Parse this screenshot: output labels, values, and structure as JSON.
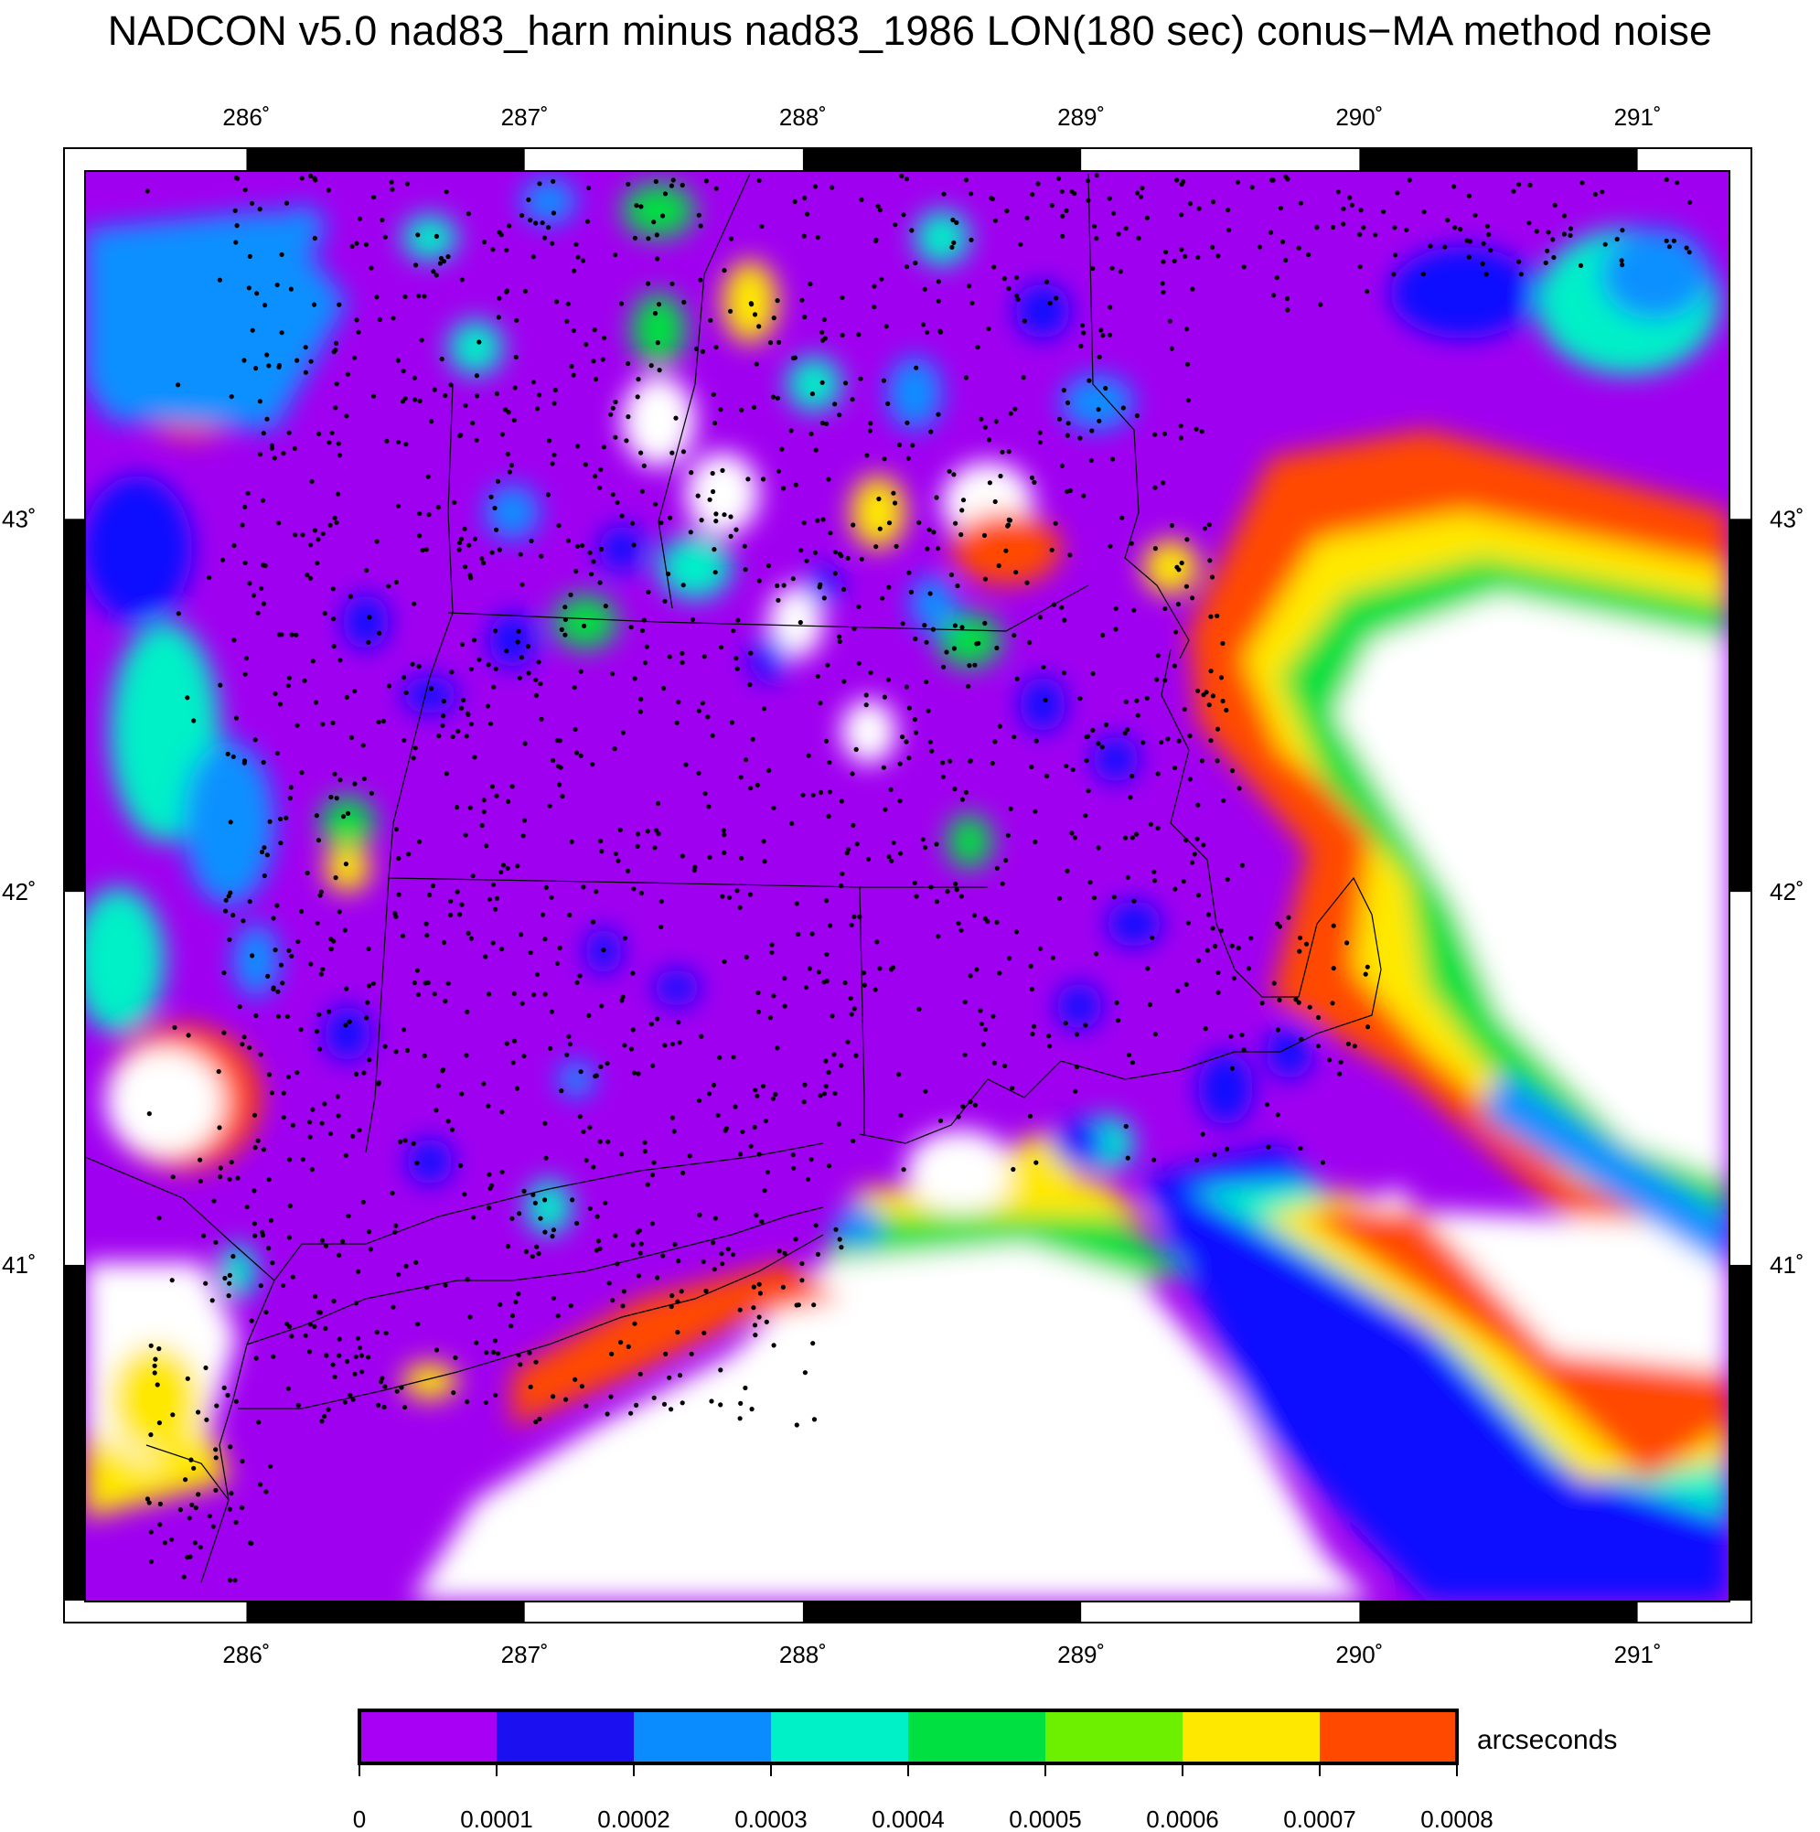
{
  "title": "NADCON v5.0 nad83_harn minus nad83_1986 LON(180 sec) conus−MA method noise",
  "map": {
    "lon_ticks": [
      "286˚",
      "287˚",
      "288˚",
      "289˚",
      "290˚",
      "291˚"
    ],
    "lat_ticks": [
      "43˚",
      "42˚",
      "41˚"
    ],
    "lon_range": [
      285.42,
      291.33
    ],
    "lat_range": [
      40.1,
      43.93
    ],
    "palette": {
      "magenta": "#a000f0",
      "violet": "#8a00ff",
      "blue": "#1010ff",
      "skyblue": "#0a90ff",
      "cyan": "#00f0c8",
      "green": "#00e040",
      "lightgreen": "#7cf000",
      "yellow": "#ffe800",
      "orange": "#ff4800",
      "white": "#ffffff"
    }
  },
  "colorbar": {
    "colors": [
      "#a800f5",
      "#1a10f0",
      "#0a8cff",
      "#00f0c8",
      "#00e040",
      "#6cf000",
      "#ffe800",
      "#ff4800"
    ],
    "labels": [
      "0",
      "0.0001",
      "0.0002",
      "0.0003",
      "0.0004",
      "0.0005",
      "0.0006",
      "0.0007",
      "0.0008"
    ],
    "units": "arcseconds"
  }
}
